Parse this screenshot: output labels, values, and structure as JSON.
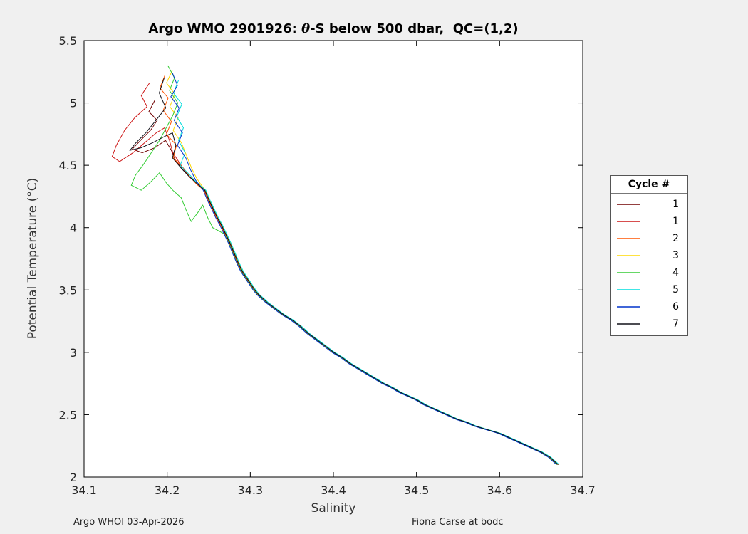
{
  "header": {
    "title_prefix": "Argo WMO 2901926: ",
    "title_theta": "θ",
    "title_suffix": "-S below 500 dbar,  QC=(1,2)"
  },
  "footer": {
    "left": "Argo WHOI 03-Apr-2026",
    "right": "Fiona Carse at bodc"
  },
  "legend": {
    "title": "Cycle #",
    "position": "right-outside"
  },
  "colors": {
    "figure_background": "#f0f0f0",
    "plot_background": "#ffffff",
    "axis_frame": "#000000",
    "tick_label": "#262626"
  },
  "chart_data": {
    "type": "line",
    "title": "Argo WMO 2901926: θ-S below 500 dbar,  QC=(1,2)",
    "xlabel": "Salinity",
    "ylabel": "Potential Temperature (°C)",
    "xlim": [
      34.1,
      34.7
    ],
    "ylim": [
      2,
      5.5
    ],
    "grid": false,
    "legend_position": "right-outside",
    "xticks": {
      "values": [
        34.1,
        34.2,
        34.3,
        34.4,
        34.5,
        34.6,
        34.7
      ],
      "labels": [
        "34.1",
        "34.2",
        "34.3",
        "34.4",
        "34.5",
        "34.6",
        "34.7"
      ]
    },
    "yticks": {
      "values": [
        2,
        2.5,
        3,
        3.5,
        4,
        4.5,
        5,
        5.5
      ],
      "labels": [
        "2",
        "2.5",
        "3",
        "3.5",
        "4",
        "4.5",
        "5",
        "5.5"
      ]
    },
    "common_deep_curve": [
      [
        34.245,
        4.3
      ],
      [
        34.25,
        4.22
      ],
      [
        34.255,
        4.15
      ],
      [
        34.26,
        4.08
      ],
      [
        34.265,
        4.02
      ],
      [
        34.27,
        3.95
      ],
      [
        34.275,
        3.88
      ],
      [
        34.28,
        3.8
      ],
      [
        34.285,
        3.72
      ],
      [
        34.29,
        3.65
      ],
      [
        34.295,
        3.6
      ],
      [
        34.3,
        3.55
      ],
      [
        34.305,
        3.5
      ],
      [
        34.31,
        3.46
      ],
      [
        34.32,
        3.4
      ],
      [
        34.33,
        3.35
      ],
      [
        34.34,
        3.3
      ],
      [
        34.35,
        3.26
      ],
      [
        34.36,
        3.21
      ],
      [
        34.37,
        3.15
      ],
      [
        34.38,
        3.1
      ],
      [
        34.39,
        3.05
      ],
      [
        34.4,
        3.0
      ],
      [
        34.41,
        2.96
      ],
      [
        34.42,
        2.91
      ],
      [
        34.43,
        2.87
      ],
      [
        34.44,
        2.83
      ],
      [
        34.45,
        2.79
      ],
      [
        34.46,
        2.75
      ],
      [
        34.47,
        2.72
      ],
      [
        34.48,
        2.68
      ],
      [
        34.49,
        2.65
      ],
      [
        34.5,
        2.62
      ],
      [
        34.51,
        2.58
      ],
      [
        34.52,
        2.55
      ],
      [
        34.53,
        2.52
      ],
      [
        34.54,
        2.49
      ],
      [
        34.55,
        2.46
      ],
      [
        34.56,
        2.44
      ],
      [
        34.57,
        2.41
      ],
      [
        34.58,
        2.39
      ],
      [
        34.59,
        2.37
      ],
      [
        34.6,
        2.35
      ],
      [
        34.61,
        2.32
      ],
      [
        34.62,
        2.29
      ],
      [
        34.63,
        2.26
      ],
      [
        34.64,
        2.23
      ],
      [
        34.65,
        2.2
      ],
      [
        34.655,
        2.18
      ],
      [
        34.66,
        2.16
      ],
      [
        34.665,
        2.13
      ],
      [
        34.67,
        2.1
      ]
    ],
    "series": [
      {
        "name": "1",
        "color": "#700000",
        "s_offset": 0.0,
        "join": 0,
        "upper": [
          [
            34.185,
            5.02
          ],
          [
            34.178,
            4.93
          ],
          [
            34.188,
            4.86
          ],
          [
            34.18,
            4.78
          ],
          [
            34.168,
            4.7
          ],
          [
            34.158,
            4.63
          ],
          [
            34.17,
            4.6
          ],
          [
            34.185,
            4.64
          ],
          [
            34.198,
            4.7
          ],
          [
            34.205,
            4.62
          ],
          [
            34.21,
            4.54
          ],
          [
            34.218,
            4.47
          ],
          [
            34.228,
            4.4
          ],
          [
            34.238,
            4.35
          ]
        ]
      },
      {
        "name": "1",
        "color": "#cc1414",
        "s_offset": 0.0008,
        "join": 0,
        "upper": [
          [
            34.178,
            5.16
          ],
          [
            34.168,
            5.06
          ],
          [
            34.175,
            4.97
          ],
          [
            34.16,
            4.88
          ],
          [
            34.148,
            4.78
          ],
          [
            34.138,
            4.66
          ],
          [
            34.133,
            4.57
          ],
          [
            34.142,
            4.53
          ],
          [
            34.158,
            4.6
          ],
          [
            34.172,
            4.68
          ],
          [
            34.186,
            4.76
          ],
          [
            34.196,
            4.8
          ],
          [
            34.202,
            4.7
          ],
          [
            34.206,
            4.6
          ],
          [
            34.214,
            4.52
          ],
          [
            34.222,
            4.44
          ],
          [
            34.232,
            4.37
          ]
        ]
      },
      {
        "name": "2",
        "color": "#ff5500",
        "s_offset": -0.0008,
        "join": 0,
        "upper": [
          [
            34.198,
            5.22
          ],
          [
            34.192,
            5.12
          ],
          [
            34.202,
            5.04
          ],
          [
            34.196,
            4.94
          ],
          [
            34.206,
            4.85
          ],
          [
            34.2,
            4.75
          ],
          [
            34.212,
            4.66
          ],
          [
            34.208,
            4.56
          ],
          [
            34.22,
            4.48
          ],
          [
            34.228,
            4.41
          ],
          [
            34.236,
            4.35
          ]
        ]
      },
      {
        "name": "3",
        "color": "#ffd900",
        "s_offset": 0.0012,
        "join": 0,
        "upper": [
          [
            34.205,
            5.26
          ],
          [
            34.198,
            5.16
          ],
          [
            34.208,
            5.07
          ],
          [
            34.202,
            4.97
          ],
          [
            34.212,
            4.88
          ],
          [
            34.206,
            4.78
          ],
          [
            34.216,
            4.68
          ],
          [
            34.222,
            4.58
          ],
          [
            34.228,
            4.48
          ],
          [
            34.234,
            4.4
          ],
          [
            34.24,
            4.34
          ]
        ]
      },
      {
        "name": "4",
        "color": "#33cc33",
        "s_offset": -0.0012,
        "join": 5,
        "upper": [
          [
            34.202,
            5.3
          ],
          [
            34.21,
            5.2
          ],
          [
            34.204,
            5.1
          ],
          [
            34.214,
            5.0
          ],
          [
            34.208,
            4.9
          ],
          [
            34.2,
            4.8
          ],
          [
            34.192,
            4.7
          ],
          [
            34.182,
            4.6
          ],
          [
            34.172,
            4.5
          ],
          [
            34.163,
            4.42
          ],
          [
            34.158,
            4.34
          ],
          [
            34.17,
            4.3
          ],
          [
            34.182,
            4.37
          ],
          [
            34.192,
            4.44
          ],
          [
            34.2,
            4.36
          ],
          [
            34.208,
            4.3
          ],
          [
            34.218,
            4.24
          ],
          [
            34.224,
            4.14
          ],
          [
            34.23,
            4.05
          ],
          [
            34.238,
            4.12
          ],
          [
            34.244,
            4.18
          ],
          [
            34.25,
            4.08
          ],
          [
            34.256,
            4.0
          ]
        ]
      },
      {
        "name": "5",
        "color": "#00dddd",
        "s_offset": 0.0016,
        "join": 0,
        "upper": [
          [
            34.212,
            5.18
          ],
          [
            34.206,
            5.08
          ],
          [
            34.216,
            4.99
          ],
          [
            34.21,
            4.89
          ],
          [
            34.218,
            4.8
          ],
          [
            34.212,
            4.7
          ],
          [
            34.22,
            4.6
          ],
          [
            34.214,
            4.5
          ],
          [
            34.226,
            4.42
          ],
          [
            34.234,
            4.36
          ]
        ]
      },
      {
        "name": "6",
        "color": "#0033cc",
        "s_offset": -0.0016,
        "join": 0,
        "upper": [
          [
            34.208,
            5.24
          ],
          [
            34.214,
            5.14
          ],
          [
            34.206,
            5.05
          ],
          [
            34.216,
            4.96
          ],
          [
            34.21,
            4.86
          ],
          [
            34.22,
            4.76
          ],
          [
            34.214,
            4.66
          ],
          [
            34.224,
            4.56
          ],
          [
            34.23,
            4.46
          ],
          [
            34.236,
            4.38
          ]
        ]
      },
      {
        "name": "7",
        "color": "#101018",
        "s_offset": 0.0004,
        "join": 0,
        "upper": [
          [
            34.196,
            5.2
          ],
          [
            34.19,
            5.08
          ],
          [
            34.198,
            4.96
          ],
          [
            34.186,
            4.86
          ],
          [
            34.174,
            4.76
          ],
          [
            34.162,
            4.68
          ],
          [
            34.155,
            4.62
          ],
          [
            34.168,
            4.64
          ],
          [
            34.182,
            4.68
          ],
          [
            34.196,
            4.73
          ],
          [
            34.206,
            4.76
          ],
          [
            34.21,
            4.66
          ],
          [
            34.206,
            4.56
          ],
          [
            34.216,
            4.48
          ],
          [
            34.226,
            4.41
          ],
          [
            34.236,
            4.35
          ]
        ]
      }
    ]
  }
}
